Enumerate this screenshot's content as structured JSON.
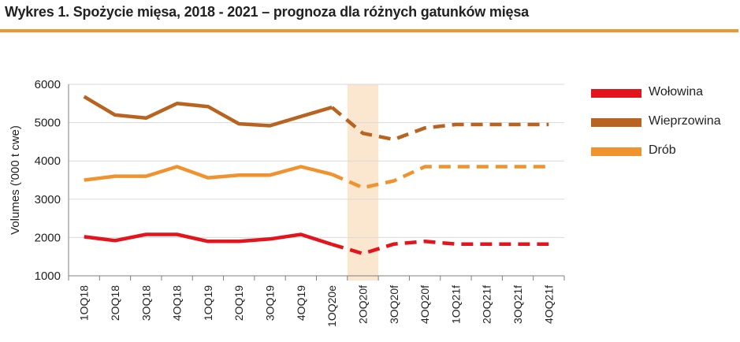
{
  "header": {
    "title": "Wykres 1. Spożycie mięsa, 2018 - 2021 – prognoza dla różnych gatunków mięsa"
  },
  "colors": {
    "accent_rule": "#f0962e",
    "highlight_band": "#fbe6d0",
    "axis": "#7f7f7f",
    "grid": "#d9d9d9"
  },
  "chart_data": {
    "type": "line",
    "title": "",
    "xlabel": "",
    "ylabel": "Volumes ('000 t cwe)",
    "ylim": [
      1000,
      6000
    ],
    "yticks": [
      1000,
      2000,
      3000,
      4000,
      5000,
      6000
    ],
    "categories": [
      "1OQ18",
      "2OQ18",
      "3OQ18",
      "4OQ18",
      "1OQ19",
      "2OQ19",
      "3OQ19",
      "4OQ19",
      "1OQ20e",
      "2OQ20f",
      "3OQ20f",
      "4OQ20f",
      "1OQ21f",
      "2OQ21f",
      "3OQ21f",
      "4OQ21f"
    ],
    "highlight_category": "2OQ20f",
    "actual_end_index": 8,
    "grid": "horizontal",
    "legend_position": "right",
    "series": [
      {
        "name": "Wołowina",
        "color": "#e3141c",
        "values": [
          2020,
          1920,
          2080,
          2080,
          1900,
          1900,
          1960,
          2080,
          1820,
          1580,
          1830,
          1900,
          1830,
          1830,
          1830,
          1830
        ]
      },
      {
        "name": "Wieprzowina",
        "color": "#b8631f",
        "values": [
          5680,
          5200,
          5120,
          5500,
          5420,
          4970,
          4920,
          5160,
          5400,
          4720,
          4560,
          4860,
          4950,
          4950,
          4950,
          4950
        ]
      },
      {
        "name": "Drób",
        "color": "#f0932f",
        "values": [
          3500,
          3600,
          3600,
          3850,
          3560,
          3630,
          3630,
          3850,
          3650,
          3300,
          3480,
          3850,
          3850,
          3850,
          3850,
          3850
        ]
      }
    ]
  }
}
